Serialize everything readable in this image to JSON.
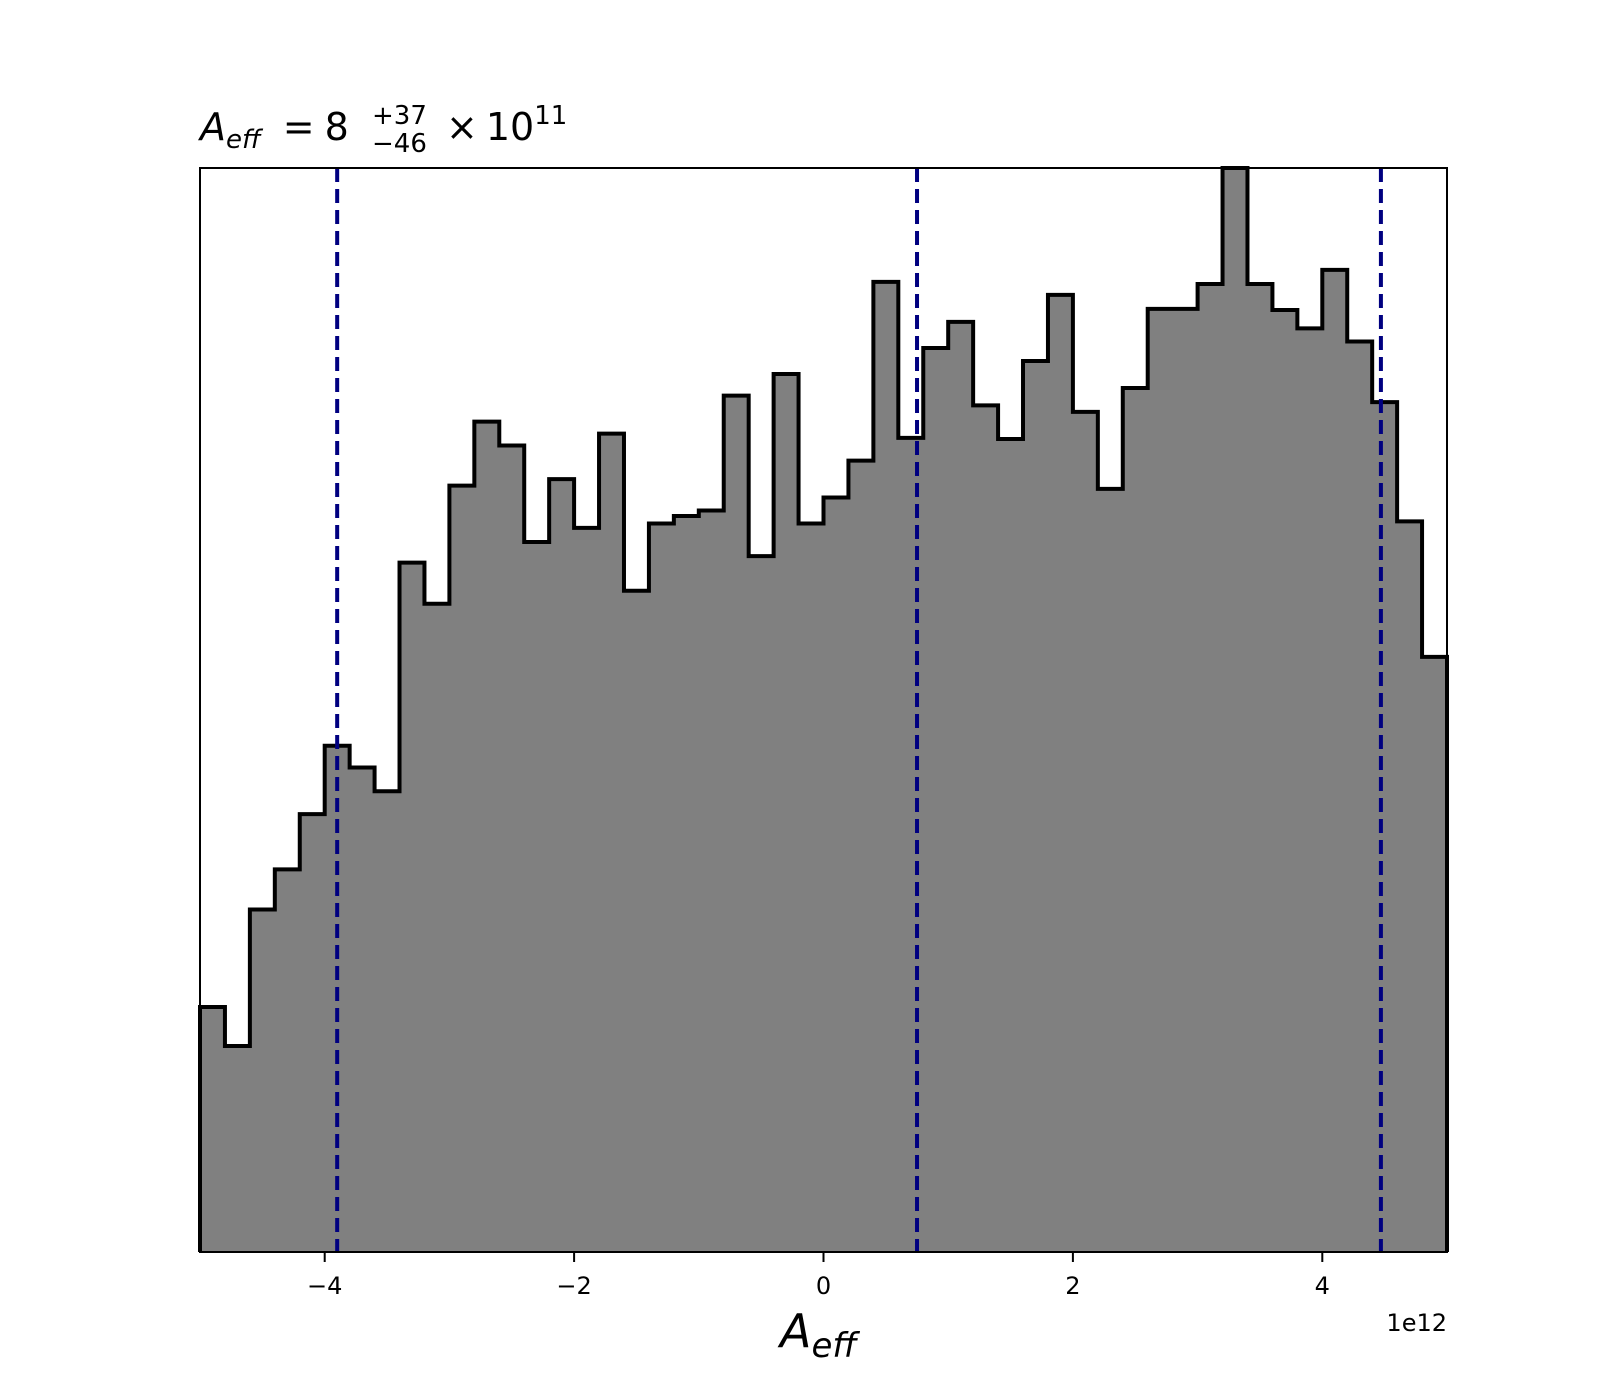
{
  "chart_data": {
    "type": "histogram",
    "title": {
      "symbol": "A",
      "symbol_sub": "eff",
      "equals": "=",
      "value": "8",
      "upper": "+37",
      "lower": "−46",
      "times": "×",
      "base": "10",
      "exponent": "11"
    },
    "xlabel": {
      "symbol": "A",
      "sub": "eff"
    },
    "x_offset_label": "1e12",
    "xlim": [
      -5.0,
      5.0
    ],
    "ylim": [
      0,
      1
    ],
    "x_scale": 1000000000000.0,
    "bin_edges": [
      -5.0,
      -4.8,
      -4.6,
      -4.4,
      -4.2,
      -4.0,
      -3.8,
      -3.6,
      -3.4,
      -3.2,
      -3.0,
      -2.8,
      -2.6,
      -2.4,
      -2.2,
      -2.0,
      -1.8,
      -1.6,
      -1.4,
      -1.2,
      -1.0,
      -0.8,
      -0.6,
      -0.4,
      -0.2,
      0.0,
      0.2,
      0.4,
      0.6,
      0.8,
      1.0,
      1.2,
      1.4,
      1.6,
      1.8,
      2.0,
      2.2,
      2.4,
      2.6,
      2.8,
      3.0,
      3.2,
      3.4,
      3.6,
      3.8,
      4.0,
      4.2,
      4.4,
      4.6,
      4.8,
      5.0
    ],
    "values": [
      0.226,
      0.19,
      0.316,
      0.353,
      0.404,
      0.467,
      0.447,
      0.425,
      0.636,
      0.598,
      0.707,
      0.766,
      0.744,
      0.655,
      0.713,
      0.668,
      0.755,
      0.61,
      0.672,
      0.679,
      0.684,
      0.79,
      0.642,
      0.81,
      0.672,
      0.696,
      0.73,
      0.895,
      0.751,
      0.834,
      0.858,
      0.781,
      0.75,
      0.822,
      0.883,
      0.775,
      0.704,
      0.797,
      0.87,
      0.87,
      0.893,
      1.0,
      0.893,
      0.869,
      0.852,
      0.906,
      0.84,
      0.784,
      0.674,
      0.549
    ],
    "quantile_lines": [
      -3.9,
      0.75,
      4.47
    ],
    "xticks": [
      {
        "value": -4,
        "label": "−4"
      },
      {
        "value": -2,
        "label": "−2"
      },
      {
        "value": 0,
        "label": "0"
      },
      {
        "value": 2,
        "label": "2"
      },
      {
        "value": 4,
        "label": "4"
      }
    ],
    "yticks": [],
    "grid": false,
    "colors": {
      "fill": "#808080",
      "edge": "#000000",
      "quantile_line": "#000080"
    }
  }
}
